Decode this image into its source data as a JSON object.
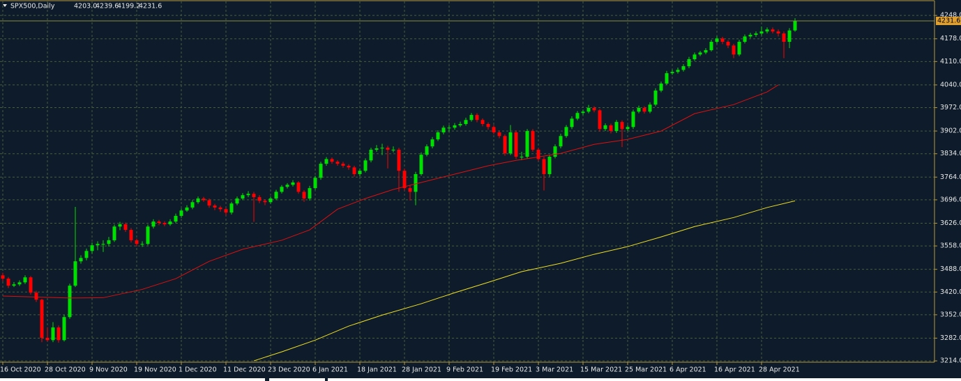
{
  "chart_data": {
    "type": "candlestick",
    "title": "SPX500,Daily",
    "header_labels": [
      "4203.0",
      "4239.6",
      "4199.2",
      "4231.6"
    ],
    "colors": {
      "up": "#00e000",
      "down": "#ff0000",
      "background": "#0d1b2a",
      "grid": "#4a5e3a"
    },
    "grid": true,
    "ylim": [
      3210,
      4290
    ],
    "yticks": [
      {
        "value": 4248,
        "label": "4248.0"
      },
      {
        "value": 4178,
        "label": "4178.0"
      },
      {
        "value": 4110,
        "label": "4110.0"
      },
      {
        "value": 4040,
        "label": "4040.0"
      },
      {
        "value": 3972,
        "label": "3972.0"
      },
      {
        "value": 3902,
        "label": "3902.0"
      },
      {
        "value": 3834,
        "label": "3834.0"
      },
      {
        "value": 3764,
        "label": "3764.0"
      },
      {
        "value": 3696,
        "label": "3696.0"
      },
      {
        "value": 3626,
        "label": "3626.0"
      },
      {
        "value": 3558,
        "label": "3558.0"
      },
      {
        "value": 3488,
        "label": "3488.0"
      },
      {
        "value": 3420,
        "label": "3420.0"
      },
      {
        "value": 3352,
        "label": "3352.0"
      },
      {
        "value": 3282,
        "label": "3282.0"
      },
      {
        "value": 3214,
        "label": "3214.0"
      }
    ],
    "categories": [
      "16 Oct 2020",
      null,
      null,
      null,
      null,
      null,
      null,
      null,
      "28 Oct 2020",
      null,
      null,
      null,
      null,
      null,
      null,
      null,
      "9 Nov 2020",
      null,
      null,
      null,
      null,
      null,
      null,
      null,
      "19 Nov 2020",
      null,
      null,
      null,
      null,
      null,
      null,
      null,
      "1 Dec 2020",
      null,
      null,
      null,
      null,
      null,
      null,
      null,
      "11 Dec 2020",
      null,
      null,
      null,
      null,
      null,
      null,
      null,
      "23 Dec 2020",
      null,
      null,
      null,
      null,
      null,
      null,
      null,
      "6 Jan 2021",
      null,
      null,
      null,
      null,
      null,
      null,
      null,
      "18 Jan 2021",
      null,
      null,
      null,
      null,
      null,
      null,
      null,
      "28 Jan 2021",
      null,
      null,
      null,
      null,
      null,
      null,
      null,
      "9 Feb 2021",
      null,
      null,
      null,
      null,
      null,
      null,
      null,
      "19 Feb 2021",
      null,
      null,
      null,
      null,
      null,
      null,
      null,
      "3 Mar 2021",
      null,
      null,
      null,
      null,
      null,
      null,
      null,
      "15 Mar 2021",
      null,
      null,
      null,
      null,
      null,
      null,
      null,
      "25 Mar 2021",
      null,
      null,
      null,
      null,
      null,
      null,
      null,
      "6 Apr 2021",
      null,
      null,
      null,
      null,
      null,
      null,
      null,
      "16 Apr 2021",
      null,
      null,
      null,
      null,
      null,
      null,
      null,
      "28 Apr 2021",
      null,
      null,
      null,
      null,
      null,
      null
    ],
    "ohlc": [
      [
        3470,
        3478,
        3452,
        3460
      ],
      [
        3460,
        3465,
        3432,
        3439
      ],
      [
        3439,
        3450,
        3435,
        3443
      ],
      [
        3443,
        3455,
        3438,
        3449
      ],
      [
        3449,
        3470,
        3444,
        3464
      ],
      [
        3464,
        3468,
        3412,
        3418
      ],
      [
        3418,
        3424,
        3390,
        3397
      ],
      [
        3397,
        3400,
        3270,
        3283
      ],
      [
        3283,
        3315,
        3272,
        3276
      ],
      [
        3276,
        3330,
        3270,
        3314
      ],
      [
        3314,
        3320,
        3268,
        3276
      ],
      [
        3276,
        3352,
        3272,
        3345
      ],
      [
        3345,
        3445,
        3340,
        3439
      ],
      [
        3439,
        3675,
        3435,
        3512
      ],
      [
        3512,
        3530,
        3505,
        3522
      ],
      [
        3522,
        3550,
        3515,
        3543
      ],
      [
        3543,
        3568,
        3535,
        3560
      ],
      [
        3560,
        3572,
        3545,
        3564
      ],
      [
        3564,
        3575,
        3540,
        3564
      ],
      [
        3564,
        3585,
        3556,
        3575
      ],
      [
        3575,
        3622,
        3570,
        3616
      ],
      [
        3616,
        3630,
        3605,
        3623
      ],
      [
        3623,
        3628,
        3600,
        3606
      ],
      [
        3606,
        3612,
        3568,
        3575
      ],
      [
        3575,
        3580,
        3556,
        3564
      ],
      [
        3564,
        3572,
        3555,
        3564
      ],
      [
        3564,
        3622,
        3560,
        3616
      ],
      [
        3616,
        3638,
        3610,
        3631
      ],
      [
        3631,
        3636,
        3620,
        3627
      ],
      [
        3627,
        3632,
        3617,
        3623
      ],
      [
        3623,
        3638,
        3618,
        3631
      ],
      [
        3631,
        3655,
        3626,
        3648
      ],
      [
        3648,
        3670,
        3642,
        3664
      ],
      [
        3664,
        3680,
        3660,
        3673
      ],
      [
        3673,
        3695,
        3668,
        3689
      ],
      [
        3689,
        3706,
        3684,
        3700
      ],
      [
        3700,
        3705,
        3690,
        3695
      ],
      [
        3695,
        3700,
        3672,
        3679
      ],
      [
        3679,
        3684,
        3665,
        3673
      ],
      [
        3673,
        3678,
        3660,
        3668
      ],
      [
        3668,
        3672,
        3650,
        3658
      ],
      [
        3658,
        3690,
        3652,
        3685
      ],
      [
        3685,
        3706,
        3680,
        3700
      ],
      [
        3700,
        3716,
        3695,
        3710
      ],
      [
        3710,
        3722,
        3704,
        3714
      ],
      [
        3714,
        3720,
        3630,
        3704
      ],
      [
        3704,
        3710,
        3686,
        3693
      ],
      [
        3693,
        3698,
        3680,
        3689
      ],
      [
        3689,
        3706,
        3684,
        3700
      ],
      [
        3700,
        3726,
        3695,
        3720
      ],
      [
        3720,
        3740,
        3715,
        3735
      ],
      [
        3735,
        3746,
        3730,
        3741
      ],
      [
        3741,
        3755,
        3736,
        3748
      ],
      [
        3748,
        3752,
        3714,
        3720
      ],
      [
        3720,
        3725,
        3690,
        3700
      ],
      [
        3700,
        3738,
        3694,
        3731
      ],
      [
        3731,
        3768,
        3726,
        3762
      ],
      [
        3762,
        3810,
        3756,
        3804
      ],
      [
        3804,
        3824,
        3798,
        3818
      ],
      [
        3818,
        3823,
        3804,
        3810
      ],
      [
        3810,
        3815,
        3798,
        3804
      ],
      [
        3804,
        3810,
        3792,
        3798
      ],
      [
        3798,
        3803,
        3786,
        3793
      ],
      [
        3793,
        3798,
        3765,
        3773
      ],
      [
        3773,
        3790,
        3766,
        3783
      ],
      [
        3783,
        3820,
        3778,
        3814
      ],
      [
        3814,
        3852,
        3808,
        3846
      ],
      [
        3846,
        3860,
        3840,
        3850
      ],
      [
        3850,
        3864,
        3830,
        3852
      ],
      [
        3852,
        3858,
        3790,
        3846
      ],
      [
        3846,
        3856,
        3838,
        3846
      ],
      [
        3846,
        3852,
        3720,
        3783
      ],
      [
        3783,
        3790,
        3724,
        3731
      ],
      [
        3731,
        3740,
        3694,
        3720
      ],
      [
        3720,
        3780,
        3680,
        3773
      ],
      [
        3773,
        3838,
        3768,
        3831
      ],
      [
        3831,
        3862,
        3826,
        3856
      ],
      [
        3856,
        3884,
        3850,
        3877
      ],
      [
        3877,
        3904,
        3872,
        3898
      ],
      [
        3898,
        3918,
        3892,
        3912
      ],
      [
        3912,
        3920,
        3900,
        3912
      ],
      [
        3912,
        3926,
        3906,
        3919
      ],
      [
        3919,
        3930,
        3914,
        3923
      ],
      [
        3923,
        3942,
        3918,
        3935
      ],
      [
        3935,
        3956,
        3930,
        3950
      ],
      [
        3950,
        3955,
        3928,
        3935
      ],
      [
        3935,
        3940,
        3916,
        3923
      ],
      [
        3923,
        3928,
        3906,
        3914
      ],
      [
        3914,
        3920,
        3892,
        3898
      ],
      [
        3898,
        3904,
        3880,
        3887
      ],
      [
        3887,
        3892,
        3828,
        3835
      ],
      [
        3835,
        3920,
        3830,
        3898
      ],
      [
        3898,
        3904,
        3818,
        3825
      ],
      [
        3825,
        3840,
        3815,
        3825
      ],
      [
        3825,
        3908,
        3820,
        3902
      ],
      [
        3902,
        3908,
        3840,
        3846
      ],
      [
        3846,
        3852,
        3812,
        3818
      ],
      [
        3818,
        3825,
        3724,
        3773
      ],
      [
        3773,
        3830,
        3765,
        3825
      ],
      [
        3825,
        3862,
        3820,
        3856
      ],
      [
        3856,
        3894,
        3850,
        3887
      ],
      [
        3887,
        3920,
        3882,
        3914
      ],
      [
        3914,
        3946,
        3908,
        3939
      ],
      [
        3939,
        3962,
        3934,
        3956
      ],
      [
        3956,
        3966,
        3950,
        3960
      ],
      [
        3960,
        3980,
        3955,
        3971
      ],
      [
        3971,
        3976,
        3958,
        3964
      ],
      [
        3964,
        3968,
        3900,
        3908
      ],
      [
        3908,
        3925,
        3902,
        3919
      ],
      [
        3919,
        3924,
        3895,
        3902
      ],
      [
        3902,
        3935,
        3896,
        3929
      ],
      [
        3929,
        3934,
        3854,
        3908
      ],
      [
        3908,
        3920,
        3902,
        3914
      ],
      [
        3914,
        3966,
        3908,
        3960
      ],
      [
        3960,
        3978,
        3955,
        3971
      ],
      [
        3971,
        3976,
        3954,
        3960
      ],
      [
        3960,
        3988,
        3955,
        3981
      ],
      [
        3981,
        4030,
        3976,
        4023
      ],
      [
        4023,
        4050,
        4018,
        4044
      ],
      [
        4044,
        4082,
        4040,
        4075
      ],
      [
        4075,
        4086,
        4070,
        4079
      ],
      [
        4079,
        4092,
        4074,
        4085
      ],
      [
        4085,
        4102,
        4080,
        4096
      ],
      [
        4096,
        4124,
        4090,
        4117
      ],
      [
        4117,
        4137,
        4112,
        4131
      ],
      [
        4131,
        4142,
        4126,
        4137
      ],
      [
        4137,
        4150,
        4132,
        4144
      ],
      [
        4144,
        4175,
        4140,
        4169
      ],
      [
        4169,
        4186,
        4164,
        4179
      ],
      [
        4179,
        4184,
        4162,
        4169
      ],
      [
        4169,
        4174,
        4150,
        4158
      ],
      [
        4158,
        4163,
        4120,
        4131
      ],
      [
        4131,
        4175,
        4126,
        4169
      ],
      [
        4169,
        4191,
        4164,
        4185
      ],
      [
        4185,
        4196,
        4180,
        4190
      ],
      [
        4190,
        4200,
        4184,
        4194
      ],
      [
        4194,
        4215,
        4188,
        4200
      ],
      [
        4200,
        4212,
        4194,
        4206
      ],
      [
        4206,
        4212,
        4194,
        4200
      ],
      [
        4200,
        4206,
        4185,
        4194
      ],
      [
        4194,
        4200,
        4120,
        4169
      ],
      [
        4169,
        4210,
        4150,
        4203
      ],
      [
        4203.0,
        4239.6,
        4199.2,
        4231.6
      ]
    ],
    "lines": [
      {
        "color": "#e01010",
        "x": [
          0,
          12,
          18,
          25,
          31,
          37,
          43,
          50,
          55,
          60,
          65,
          70,
          75,
          81,
          87,
          92,
          100,
          106,
          112,
          118,
          124,
          131,
          137,
          139
        ],
        "values": [
          3408,
          3402,
          3403,
          3428,
          3460,
          3512,
          3548,
          3575,
          3606,
          3668,
          3700,
          3727,
          3748,
          3773,
          3798,
          3814,
          3835,
          3862,
          3877,
          3902,
          3954,
          3981,
          4019,
          4040
        ]
      },
      {
        "color": "#f0e020",
        "x": [
          45,
          50,
          56,
          62,
          68,
          75,
          81,
          87,
          93,
          100,
          106,
          112,
          118,
          124,
          131,
          137,
          142
        ],
        "values": [
          3214,
          3241,
          3276,
          3318,
          3351,
          3385,
          3418,
          3449,
          3481,
          3506,
          3533,
          3556,
          3585,
          3616,
          3643,
          3673,
          3693
        ]
      }
    ]
  }
}
